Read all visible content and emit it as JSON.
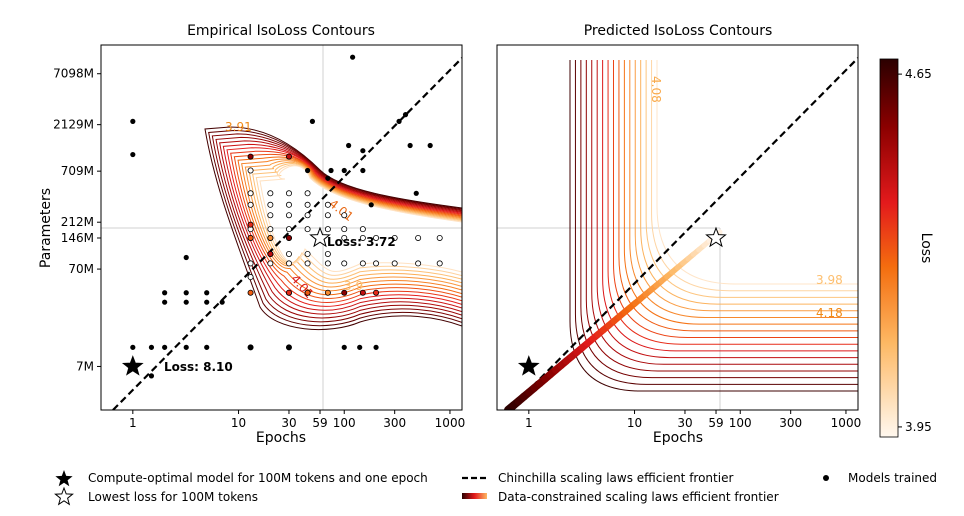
{
  "chart_data": [
    {
      "type": "scatter",
      "title": "Empirical IsoLoss Contours",
      "xlabel": "Epochs",
      "ylabel": "Parameters",
      "xscale": "log",
      "yscale": "log",
      "xlim": [
        0.5,
        1300
      ],
      "ylim": [
        2500000,
        14000000000
      ],
      "xticks": [
        {
          "v": 1,
          "label": "1"
        },
        {
          "v": 10,
          "label": "10"
        },
        {
          "v": 30,
          "label": "30"
        },
        {
          "v": 59,
          "label": "59"
        },
        {
          "v": 100,
          "label": "100"
        },
        {
          "v": 300,
          "label": "300"
        },
        {
          "v": 1000,
          "label": "1000"
        }
      ],
      "yticks": [
        {
          "v": 7000000,
          "label": "7M"
        },
        {
          "v": 70000000,
          "label": "70M"
        },
        {
          "v": 146000000,
          "label": "146M"
        },
        {
          "v": 212000000,
          "label": "212M"
        },
        {
          "v": 709000000,
          "label": "709M"
        },
        {
          "v": 2129000000,
          "label": "2129M"
        },
        {
          "v": 7098000000,
          "label": "7098M"
        }
      ],
      "reference_lines": {
        "x": 59,
        "y": 146000000
      },
      "contour_labels": [
        {
          "text": "3.91",
          "x": 9,
          "y": 1040000000
        },
        {
          "text": "4.01",
          "x": 80,
          "y": 290000000
        },
        {
          "text": "4.01",
          "x": 38,
          "y": 38000000
        },
        {
          "text": "3.9",
          "x": 62,
          "y": 34000000
        }
      ],
      "annotations": [
        {
          "text": "Loss: 3.72",
          "marker": "open-star",
          "x": 59,
          "y": 146000000
        },
        {
          "text": "Loss: 8.10",
          "marker": "filled-star",
          "x": 1,
          "y": 7000000
        }
      ],
      "scatter_filled": [
        [
          1,
          2300000000
        ],
        [
          1,
          1050000000
        ],
        [
          1,
          11000000
        ],
        [
          1.5,
          11000000
        ],
        [
          1.5,
          5600000
        ],
        [
          2,
          11000000
        ],
        [
          2,
          32000000
        ],
        [
          2,
          40000000
        ],
        [
          3.2,
          11000000
        ],
        [
          3.2,
          32000000
        ],
        [
          3.2,
          40000000
        ],
        [
          3.2,
          92000000
        ],
        [
          5,
          11000000
        ],
        [
          5,
          32000000
        ],
        [
          5,
          40000000
        ],
        [
          7,
          32000000
        ],
        [
          13,
          11000000
        ],
        [
          30,
          11000000
        ],
        [
          45,
          720000000
        ],
        [
          50,
          2300000000
        ],
        [
          70,
          600000000
        ],
        [
          75,
          720000000
        ],
        [
          110,
          1300000000
        ],
        [
          120,
          10500000000
        ],
        [
          100,
          720000000
        ],
        [
          150,
          1150000000
        ],
        [
          150,
          720000000
        ],
        [
          180,
          320000000
        ],
        [
          200,
          11000000
        ],
        [
          330,
          2300000000
        ],
        [
          380,
          2700000000
        ],
        [
          420,
          1300000000
        ],
        [
          480,
          420000000
        ],
        [
          650,
          1300000000
        ],
        [
          100,
          11000000
        ],
        [
          140,
          11000000
        ]
      ],
      "scatter_open": [
        [
          13,
          720000000
        ],
        [
          13,
          420000000
        ],
        [
          13,
          320000000
        ],
        [
          13,
          180000000
        ],
        [
          13,
          146000000
        ],
        [
          13,
          80000000
        ],
        [
          13,
          58000000
        ],
        [
          20,
          420000000
        ],
        [
          20,
          320000000
        ],
        [
          20,
          250000000
        ],
        [
          20,
          180000000
        ],
        [
          20,
          146000000
        ],
        [
          20,
          100000000
        ],
        [
          20,
          80000000
        ],
        [
          30,
          420000000
        ],
        [
          30,
          320000000
        ],
        [
          30,
          250000000
        ],
        [
          30,
          180000000
        ],
        [
          30,
          146000000
        ],
        [
          30,
          100000000
        ],
        [
          30,
          80000000
        ],
        [
          30,
          40000000
        ],
        [
          45,
          420000000
        ],
        [
          45,
          320000000
        ],
        [
          45,
          250000000
        ],
        [
          45,
          180000000
        ],
        [
          45,
          100000000
        ],
        [
          45,
          80000000
        ],
        [
          45,
          40000000
        ],
        [
          70,
          320000000
        ],
        [
          70,
          250000000
        ],
        [
          70,
          180000000
        ],
        [
          70,
          100000000
        ],
        [
          70,
          80000000
        ],
        [
          100,
          250000000
        ],
        [
          100,
          180000000
        ],
        [
          100,
          146000000
        ],
        [
          100,
          80000000
        ],
        [
          150,
          180000000
        ],
        [
          150,
          146000000
        ],
        [
          150,
          80000000
        ],
        [
          200,
          146000000
        ],
        [
          200,
          80000000
        ],
        [
          300,
          146000000
        ],
        [
          300,
          80000000
        ],
        [
          500,
          146000000
        ],
        [
          500,
          80000000
        ],
        [
          800,
          146000000
        ],
        [
          800,
          80000000
        ]
      ],
      "scatter_loss_colored": [
        [
          13,
          1000000000
        ],
        [
          30,
          1000000000
        ],
        [
          13,
          200000000
        ],
        [
          13,
          146000000
        ],
        [
          20,
          146000000
        ],
        [
          30,
          146000000
        ],
        [
          20,
          100000000
        ],
        [
          30,
          40000000
        ],
        [
          45,
          40000000
        ],
        [
          70,
          40000000
        ],
        [
          100,
          40000000
        ],
        [
          150,
          40000000
        ],
        [
          200,
          40000000
        ],
        [
          13,
          40000000
        ],
        [
          13,
          11000000
        ],
        [
          30,
          11000000
        ]
      ]
    },
    {
      "type": "line",
      "title": "Predicted IsoLoss Contours",
      "xlabel": "Epochs",
      "xscale": "log",
      "yscale": "log",
      "xlim": [
        0.5,
        1300
      ],
      "ylim": [
        2500000,
        14000000000
      ],
      "xticks": [
        {
          "v": 1,
          "label": "1"
        },
        {
          "v": 10,
          "label": "10"
        },
        {
          "v": 30,
          "label": "30"
        },
        {
          "v": 59,
          "label": "59"
        },
        {
          "v": 100,
          "label": "100"
        },
        {
          "v": 300,
          "label": "300"
        },
        {
          "v": 1000,
          "label": "1000"
        }
      ],
      "reference_lines": {
        "x": 59,
        "y": 146000000
      },
      "contour_labels": [
        {
          "text": "4.08",
          "x": 19,
          "y": 3000000000
        },
        {
          "text": "3.98",
          "x": 900,
          "y": 32000000
        },
        {
          "text": "4.18",
          "x": 900,
          "y": 18000000
        }
      ],
      "markers": [
        {
          "marker": "filled-star",
          "x": 1,
          "y": 7000000
        },
        {
          "marker": "open-star",
          "x": 59,
          "y": 146000000
        }
      ],
      "colorbar": {
        "label": "Loss",
        "min": 3.93,
        "max": 4.68,
        "ticks": [
          {
            "v": 3.95,
            "label": "3.95"
          },
          {
            "v": 4.65,
            "label": "4.65"
          }
        ]
      }
    }
  ],
  "legend": {
    "items": [
      {
        "marker": "filled-star",
        "label": "Compute-optimal model for 100M tokens and one epoch"
      },
      {
        "marker": "open-star",
        "label": "Lowest loss for 100M tokens"
      },
      {
        "marker": "dashed-line",
        "label": "Chinchilla scaling laws efficient frontier"
      },
      {
        "marker": "gradient-line",
        "label": "Data-constrained scaling laws efficient frontier"
      },
      {
        "marker": "dot",
        "label": "Models trained"
      }
    ]
  },
  "colors": {
    "contour_dark": "#1a0000",
    "contour_mid": "#d81b1b",
    "contour_light": "#fdbf6f",
    "reference": "#d0d0d0"
  }
}
